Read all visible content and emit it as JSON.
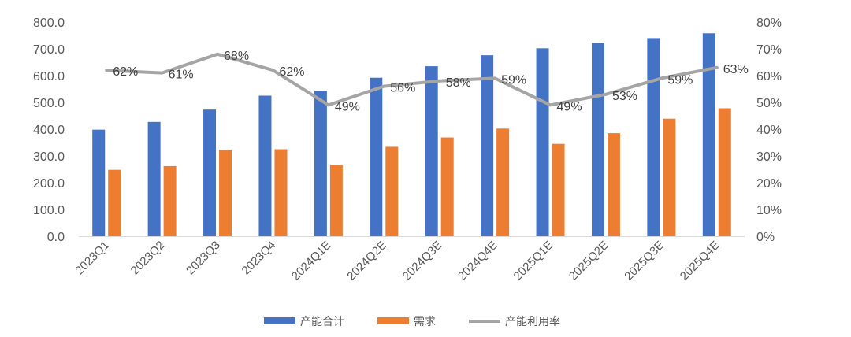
{
  "chart_data": {
    "type": "bar",
    "categories": [
      "2023Q1",
      "2023Q2",
      "2023Q3",
      "2023Q4",
      "2024Q1E",
      "2024Q2E",
      "2024Q3E",
      "2024Q4E",
      "2025Q1E",
      "2025Q2E",
      "2025Q3E",
      "2025Q4E"
    ],
    "series": [
      {
        "name": "产能合计",
        "type": "bar",
        "axis": "left",
        "color": "#4472C4",
        "values": [
          398,
          427,
          473,
          525,
          543,
          592,
          635,
          676,
          702,
          722,
          740,
          758
        ]
      },
      {
        "name": "需求",
        "type": "bar",
        "axis": "left",
        "color": "#ED7D31",
        "values": [
          248,
          262,
          322,
          325,
          267,
          334,
          369,
          402,
          345,
          385,
          439,
          478
        ]
      },
      {
        "name": "产能利用率",
        "type": "line",
        "axis": "right",
        "color": "#A5A5A5",
        "values": [
          62,
          61,
          68,
          62,
          49,
          56,
          58,
          59,
          49,
          53,
          59,
          63
        ],
        "labels": [
          "62%",
          "61%",
          "68%",
          "62%",
          "49%",
          "56%",
          "58%",
          "59%",
          "49%",
          "53%",
          "59%",
          "63%"
        ]
      }
    ],
    "y_left": {
      "min": 0,
      "max": 800,
      "ticks": [
        "0.0",
        "100.0",
        "200.0",
        "300.0",
        "400.0",
        "500.0",
        "600.0",
        "700.0",
        "800.0"
      ]
    },
    "y_right": {
      "min": 0,
      "max": 80,
      "ticks": [
        "0%",
        "10%",
        "20%",
        "30%",
        "40%",
        "50%",
        "60%",
        "70%",
        "80%"
      ]
    },
    "grid": false,
    "legend": "bottom-center"
  }
}
